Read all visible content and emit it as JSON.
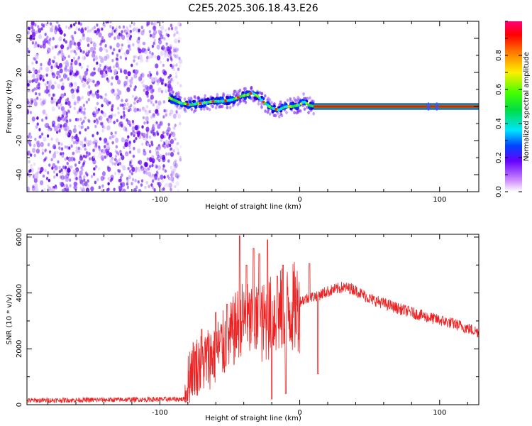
{
  "title": "C2E5.2025.306.18.43.E26",
  "chart_data": [
    {
      "type": "scatter",
      "panel": "top",
      "xlabel": "Height of straight line (km)",
      "ylabel": "Frequency (Hz)",
      "xlim": [
        -195,
        128
      ],
      "ylim": [
        -50,
        50
      ],
      "xticks": [
        -100,
        0,
        100
      ],
      "yticks": [
        -40,
        -20,
        0,
        20,
        40
      ],
      "noise_region": [
        -195,
        -85
      ],
      "ridge": {
        "x": [
          -93,
          -85,
          -78,
          -70,
          -62,
          -55,
          -48,
          -42,
          -37,
          -34,
          -30,
          -25,
          -20,
          -15,
          -10,
          -5,
          0,
          3,
          6,
          10,
          128
        ],
        "y": [
          5,
          2,
          1,
          2,
          3,
          3,
          4,
          6,
          7,
          8,
          6,
          2,
          -1,
          -2,
          0,
          0,
          1,
          3,
          1,
          0,
          0
        ]
      },
      "colorbar": {
        "label": "Normalized spectral amplitude",
        "ticks": [
          0.0,
          0.2,
          0.4,
          0.6,
          0.8
        ],
        "range": [
          0,
          1
        ]
      }
    },
    {
      "type": "line",
      "panel": "bottom",
      "xlabel": "Height of straight line (km)",
      "ylabel": "SNR (10 * v/v)",
      "xlim": [
        -195,
        128
      ],
      "ylim": [
        0,
        6100
      ],
      "xticks": [
        -100,
        0,
        100
      ],
      "yticks": [
        0,
        2000,
        4000,
        6000
      ],
      "color": "#ee2222",
      "profile": {
        "x": [
          -195,
          -82,
          -78,
          -70,
          -60,
          -50,
          -42,
          -35,
          -28,
          -20,
          -12,
          -6,
          0,
          5,
          12,
          20,
          30,
          38,
          50,
          70,
          90,
          110,
          128
        ],
        "y": [
          150,
          200,
          1400,
          1600,
          2000,
          2500,
          3200,
          3100,
          3000,
          3300,
          3500,
          3600,
          3700,
          3800,
          3900,
          4050,
          4200,
          4150,
          3800,
          3450,
          3150,
          2900,
          2600
        ]
      },
      "spikes": [
        {
          "x": -70,
          "y": 2700
        },
        {
          "x": -60,
          "y": 3300
        },
        {
          "x": -52,
          "y": 3600
        },
        {
          "x": -43,
          "y": 6050
        },
        {
          "x": -38,
          "y": 5000
        },
        {
          "x": -33,
          "y": 5600
        },
        {
          "x": -29,
          "y": 5400
        },
        {
          "x": -23,
          "y": 5900
        },
        {
          "x": -16,
          "y": 4600
        },
        {
          "x": -12,
          "y": 5000
        },
        {
          "x": 7,
          "y": 5050
        }
      ],
      "dips": [
        {
          "x": -20,
          "y": 200
        },
        {
          "x": -10,
          "y": 400
        },
        {
          "x": 13,
          "y": 1100
        }
      ]
    }
  ]
}
